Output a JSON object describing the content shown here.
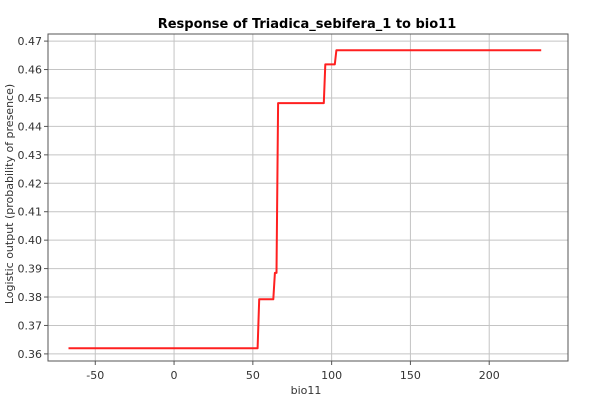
{
  "chart_data": {
    "type": "line",
    "title": "Response of Triadica_sebifera_1 to bio11",
    "xlabel": "bio11",
    "ylabel": "Logistic output (probability of presence)",
    "xlim": [
      -80,
      250
    ],
    "ylim": [
      0.3575,
      0.4725
    ],
    "x_ticks": [
      -50,
      0,
      50,
      100,
      150,
      200
    ],
    "y_ticks": [
      0.36,
      0.37,
      0.38,
      0.39,
      0.4,
      0.41,
      0.42,
      0.43,
      0.44,
      0.45,
      0.46,
      0.47
    ],
    "x_tick_labels": [
      "-50",
      "0",
      "50",
      "100",
      "150",
      "200"
    ],
    "y_tick_labels": [
      "0.36",
      "0.37",
      "0.38",
      "0.39",
      "0.40",
      "0.41",
      "0.42",
      "0.43",
      "0.44",
      "0.45",
      "0.46",
      "0.47"
    ],
    "grid": true,
    "series": [
      {
        "color": "#ff2020",
        "x": [
          -67,
          53,
          54,
          63,
          64,
          65,
          66,
          95,
          96,
          102,
          103,
          233
        ],
        "y": [
          0.362,
          0.362,
          0.3792,
          0.3792,
          0.3885,
          0.3885,
          0.4482,
          0.4482,
          0.4618,
          0.4618,
          0.4668,
          0.4668
        ]
      }
    ]
  }
}
